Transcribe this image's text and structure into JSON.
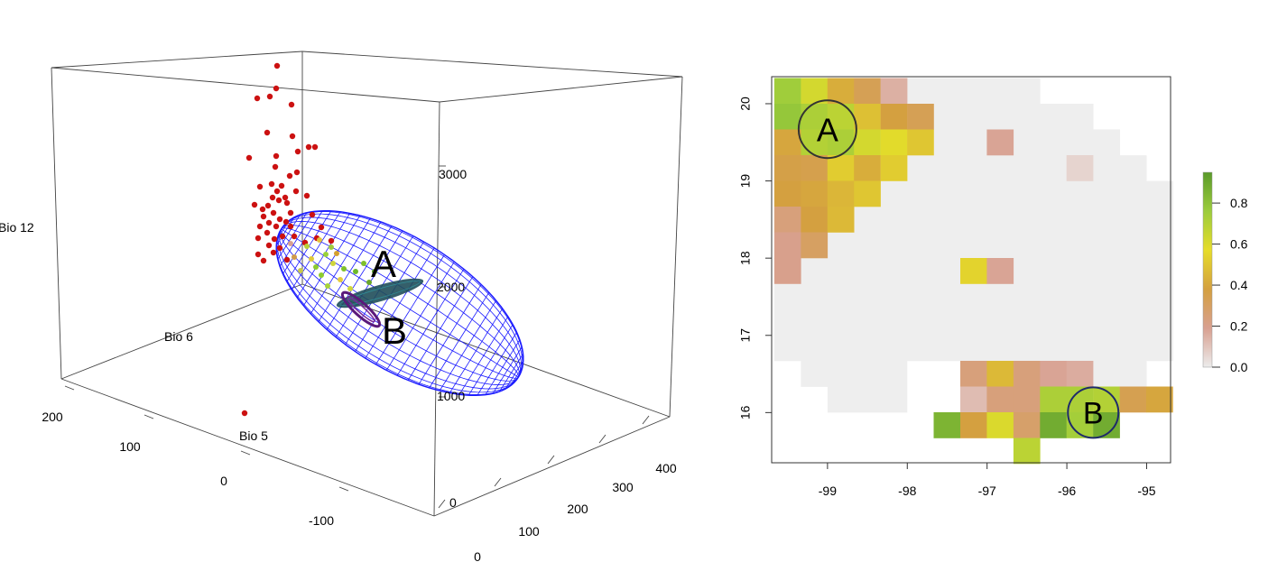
{
  "colors": {
    "ellipsoid": "#1a1aff",
    "points_red": "#cc1111",
    "ellipse_a": "#1f4e5a",
    "ellipse_b": "#5a1a7a",
    "circle_a": "#333333",
    "circle_b": "#1f2a6a",
    "na_cell": "#eeeeee"
  },
  "chart_data": [
    {
      "type": "scatter",
      "kind": "3d-scatter-with-ellipsoid",
      "axis_labels": {
        "x": "Bio 5",
        "y": "Bio 6",
        "z": "Bio 12"
      },
      "x_ticks": [
        "400",
        "300",
        "200",
        "100",
        "0"
      ],
      "y_ticks": [
        "200",
        "100",
        "0",
        "-100"
      ],
      "z_ticks": [
        "3000",
        "2000",
        "1000",
        "0"
      ],
      "annotations": [
        {
          "id": "a",
          "text": "A"
        },
        {
          "id": "b",
          "text": "B"
        }
      ],
      "red_points_screen_hint": "estimated cluster of occurrence points above the ellipsoid",
      "grid": false
    },
    {
      "type": "heatmap",
      "xlim": [
        -99.7,
        -94.7
      ],
      "ylim": [
        15.35,
        20.35
      ],
      "x_ticks": [
        -99,
        -98,
        -97,
        -96,
        -95
      ],
      "y_ticks": [
        16,
        17,
        18,
        19,
        20
      ],
      "cell_size": 0.333,
      "legend": {
        "range": [
          0,
          0.95
        ],
        "ticks": [
          "0.0",
          "0.2",
          "0.4",
          "0.6",
          "0.8"
        ],
        "colors": [
          "#ececec",
          "#d8a090",
          "#d4a040",
          "#e6dc2a",
          "#9ccc3c",
          "#5a9a2a"
        ]
      },
      "circles": [
        {
          "id": "a",
          "text": "A",
          "lon": -99.0,
          "lat": 19.67
        },
        {
          "id": "b",
          "text": "B",
          "lon": -95.67,
          "lat": 16.0
        }
      ],
      "na_region": [
        [
          -98.333,
          20.333
        ],
        [
          -96.333,
          20.333
        ],
        [
          -96.333,
          20.0
        ],
        [
          -95.667,
          20.0
        ],
        [
          -95.667,
          19.667
        ],
        [
          -95.333,
          19.667
        ],
        [
          -95.333,
          19.333
        ],
        [
          -95.0,
          19.333
        ],
        [
          -95.0,
          19.0
        ],
        [
          -94.667,
          19.0
        ],
        [
          -94.667,
          16.667
        ],
        [
          -95.0,
          16.667
        ],
        [
          -95.0,
          16.333
        ],
        [
          -97.333,
          16.333
        ],
        [
          -97.333,
          16.667
        ],
        [
          -98.0,
          16.667
        ],
        [
          -98.0,
          16.0
        ],
        [
          -99.0,
          16.0
        ],
        [
          -99.0,
          16.333
        ],
        [
          -99.333,
          16.333
        ],
        [
          -99.333,
          16.667
        ],
        [
          -99.667,
          16.667
        ],
        [
          -99.667,
          17.667
        ],
        [
          -99.333,
          17.667
        ],
        [
          -99.333,
          18.0
        ],
        [
          -99.0,
          18.0
        ],
        [
          -99.0,
          18.333
        ],
        [
          -98.667,
          18.333
        ],
        [
          -98.667,
          18.667
        ],
        [
          -98.333,
          18.667
        ],
        [
          -98.333,
          19.0
        ],
        [
          -98.0,
          19.0
        ],
        [
          -98.0,
          19.333
        ],
        [
          -97.667,
          19.333
        ],
        [
          -97.667,
          19.667
        ],
        [
          -98.0,
          19.667
        ],
        [
          -98.0,
          20.0
        ],
        [
          -98.333,
          20.0
        ]
      ],
      "cells": [
        {
          "c": 0,
          "r": 0,
          "v": 0.75
        },
        {
          "c": 1,
          "r": 0,
          "v": 0.62
        },
        {
          "c": 2,
          "r": 0,
          "v": 0.42
        },
        {
          "c": 3,
          "r": 0,
          "v": 0.33
        },
        {
          "c": 4,
          "r": 0,
          "v": 0.15
        },
        {
          "c": 0,
          "r": 1,
          "v": 0.78
        },
        {
          "c": 1,
          "r": 1,
          "v": 0.72
        },
        {
          "c": 2,
          "r": 1,
          "v": 0.68
        },
        {
          "c": 3,
          "r": 1,
          "v": 0.48
        },
        {
          "c": 4,
          "r": 1,
          "v": 0.38
        },
        {
          "c": 5,
          "r": 1,
          "v": 0.33
        },
        {
          "c": 0,
          "r": 2,
          "v": 0.4
        },
        {
          "c": 1,
          "r": 2,
          "v": 0.7
        },
        {
          "c": 2,
          "r": 2,
          "v": 0.72
        },
        {
          "c": 3,
          "r": 2,
          "v": 0.62
        },
        {
          "c": 4,
          "r": 2,
          "v": 0.58
        },
        {
          "c": 5,
          "r": 2,
          "v": 0.5
        },
        {
          "c": 8,
          "r": 2,
          "v": 0.18
        },
        {
          "c": 0,
          "r": 3,
          "v": 0.36
        },
        {
          "c": 1,
          "r": 3,
          "v": 0.35
        },
        {
          "c": 2,
          "r": 3,
          "v": 0.52
        },
        {
          "c": 3,
          "r": 3,
          "v": 0.42
        },
        {
          "c": 4,
          "r": 3,
          "v": 0.52
        },
        {
          "c": 11,
          "r": 3,
          "v": 0.06
        },
        {
          "c": 0,
          "r": 4,
          "v": 0.38
        },
        {
          "c": 1,
          "r": 4,
          "v": 0.4
        },
        {
          "c": 2,
          "r": 4,
          "v": 0.45
        },
        {
          "c": 3,
          "r": 4,
          "v": 0.5
        },
        {
          "c": 0,
          "r": 5,
          "v": 0.24
        },
        {
          "c": 1,
          "r": 5,
          "v": 0.38
        },
        {
          "c": 2,
          "r": 5,
          "v": 0.46
        },
        {
          "c": 0,
          "r": 6,
          "v": 0.2
        },
        {
          "c": 1,
          "r": 6,
          "v": 0.3
        },
        {
          "c": 0,
          "r": 7,
          "v": 0.2
        },
        {
          "c": 7,
          "r": 7,
          "v": 0.54
        },
        {
          "c": 8,
          "r": 7,
          "v": 0.18
        },
        {
          "c": 7,
          "r": 11,
          "v": 0.24
        },
        {
          "c": 8,
          "r": 11,
          "v": 0.46
        },
        {
          "c": 9,
          "r": 11,
          "v": 0.24
        },
        {
          "c": 10,
          "r": 11,
          "v": 0.18
        },
        {
          "c": 11,
          "r": 11,
          "v": 0.16
        },
        {
          "c": 7,
          "r": 12,
          "v": 0.12
        },
        {
          "c": 8,
          "r": 12,
          "v": 0.24
        },
        {
          "c": 9,
          "r": 12,
          "v": 0.24
        },
        {
          "c": 10,
          "r": 12,
          "v": 0.72
        },
        {
          "c": 11,
          "r": 12,
          "v": 0.72
        },
        {
          "c": 12,
          "r": 12,
          "v": 0.7
        },
        {
          "c": 13,
          "r": 12,
          "v": 0.34
        },
        {
          "c": 14,
          "r": 12,
          "v": 0.4
        },
        {
          "c": 6,
          "r": 13,
          "v": 0.85
        },
        {
          "c": 7,
          "r": 13,
          "v": 0.38
        },
        {
          "c": 8,
          "r": 13,
          "v": 0.6
        },
        {
          "c": 9,
          "r": 13,
          "v": 0.28
        },
        {
          "c": 10,
          "r": 13,
          "v": 0.88
        },
        {
          "c": 11,
          "r": 13,
          "v": 0.74
        },
        {
          "c": 12,
          "r": 13,
          "v": 0.88
        },
        {
          "c": 9,
          "r": 14,
          "v": 0.68
        }
      ]
    }
  ]
}
